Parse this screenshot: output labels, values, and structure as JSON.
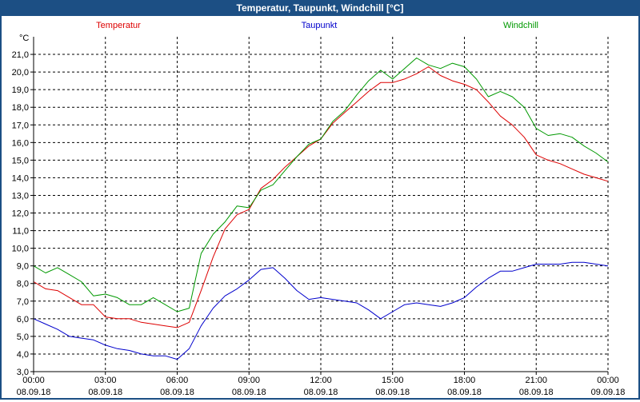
{
  "window": {
    "title": "Temperatur, Taupunkt, Windchill [°C]"
  },
  "chart_data": {
    "type": "line",
    "title": "Temperatur, Taupunkt, Windchill [°C]",
    "ylabel": "°C",
    "xlabel": "",
    "ylim": [
      3.0,
      22.0
    ],
    "xlim": [
      0,
      24
    ],
    "grid": true,
    "yticks": [
      "3,0",
      "4,0",
      "5,0",
      "6,0",
      "7,0",
      "8,0",
      "9,0",
      "10,0",
      "11,0",
      "12,0",
      "13,0",
      "14,0",
      "15,0",
      "16,0",
      "17,0",
      "18,0",
      "19,0",
      "20,0",
      "21,0"
    ],
    "xticks": [
      {
        "time": "00:00",
        "date": "08.09.18"
      },
      {
        "time": "03:00",
        "date": "08.09.18"
      },
      {
        "time": "06:00",
        "date": "08.09.18"
      },
      {
        "time": "09:00",
        "date": "08.09.18"
      },
      {
        "time": "12:00",
        "date": "08.09.18"
      },
      {
        "time": "15:00",
        "date": "08.09.18"
      },
      {
        "time": "18:00",
        "date": "08.09.18"
      },
      {
        "time": "21:00",
        "date": "08.09.18"
      },
      {
        "time": "00:00",
        "date": "09.09.18"
      }
    ],
    "x_hours": [
      0,
      0.5,
      1,
      1.5,
      2,
      2.5,
      3,
      3.5,
      4,
      4.5,
      5,
      5.5,
      6,
      6.5,
      7,
      7.5,
      8,
      8.5,
      9,
      9.5,
      10,
      10.5,
      11,
      11.5,
      12,
      12.5,
      13,
      13.5,
      14,
      14.5,
      15,
      15.5,
      16,
      16.5,
      17,
      17.5,
      18,
      18.5,
      19,
      19.5,
      20,
      20.5,
      21,
      21.5,
      22,
      22.5,
      23,
      23.5,
      24
    ],
    "series": [
      {
        "name": "Temperatur",
        "color": "#dd0000",
        "values": [
          8.1,
          7.7,
          7.6,
          7.2,
          6.8,
          6.8,
          6.1,
          6.0,
          6.0,
          5.8,
          5.7,
          5.6,
          5.5,
          5.8,
          7.6,
          9.5,
          11.1,
          11.9,
          12.2,
          13.4,
          13.9,
          14.6,
          15.2,
          15.8,
          16.2,
          17.1,
          17.7,
          18.3,
          18.9,
          19.4,
          19.4,
          19.6,
          19.9,
          20.3,
          19.8,
          19.5,
          19.3,
          19.0,
          18.3,
          17.5,
          17.0,
          16.3,
          15.3,
          15.0,
          14.8,
          14.5,
          14.2,
          14.0,
          13.8
        ]
      },
      {
        "name": "Taupunkt",
        "color": "#0000cc",
        "values": [
          6.0,
          5.7,
          5.4,
          5.0,
          4.9,
          4.8,
          4.5,
          4.3,
          4.2,
          4.0,
          3.9,
          3.9,
          3.7,
          4.3,
          5.6,
          6.6,
          7.3,
          7.7,
          8.2,
          8.8,
          8.9,
          8.3,
          7.6,
          7.1,
          7.2,
          7.1,
          7.0,
          6.9,
          6.5,
          6.0,
          6.4,
          6.8,
          6.9,
          6.8,
          6.7,
          6.9,
          7.2,
          7.8,
          8.3,
          8.7,
          8.7,
          8.9,
          9.1,
          9.1,
          9.1,
          9.2,
          9.2,
          9.1,
          9.0
        ]
      },
      {
        "name": "Windchill",
        "color": "#009900",
        "values": [
          9.0,
          8.6,
          8.9,
          8.5,
          8.1,
          7.3,
          7.4,
          7.2,
          6.8,
          6.8,
          7.2,
          6.8,
          6.4,
          6.6,
          9.7,
          10.8,
          11.5,
          12.4,
          12.3,
          13.3,
          13.6,
          14.4,
          15.2,
          15.9,
          16.2,
          17.2,
          17.8,
          18.7,
          19.5,
          20.1,
          19.6,
          20.2,
          20.8,
          20.4,
          20.2,
          20.5,
          20.3,
          19.6,
          18.6,
          18.9,
          18.6,
          18.0,
          16.8,
          16.4,
          16.5,
          16.3,
          15.8,
          15.4,
          14.9
        ]
      }
    ]
  }
}
